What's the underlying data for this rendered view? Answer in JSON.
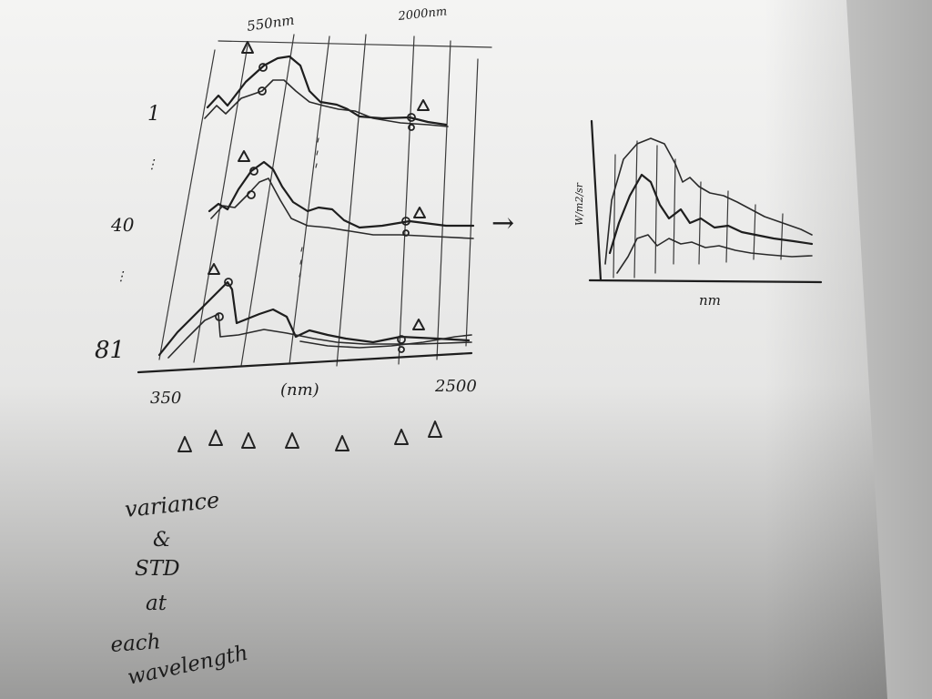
{
  "main_sketch": {
    "top_labels": [
      "550nm",
      "2000nm"
    ],
    "row_labels": [
      "1",
      "40",
      "81"
    ],
    "x_axis": {
      "start": "350",
      "unit": "(nm)",
      "end": "2500"
    }
  },
  "arrow_glyph": "→",
  "result_sketch": {
    "y_label": "W/m2/sr",
    "x_label": "nm"
  },
  "note_lines": [
    "variance",
    "&",
    "STD",
    "at",
    "each",
    "wavelength"
  ]
}
